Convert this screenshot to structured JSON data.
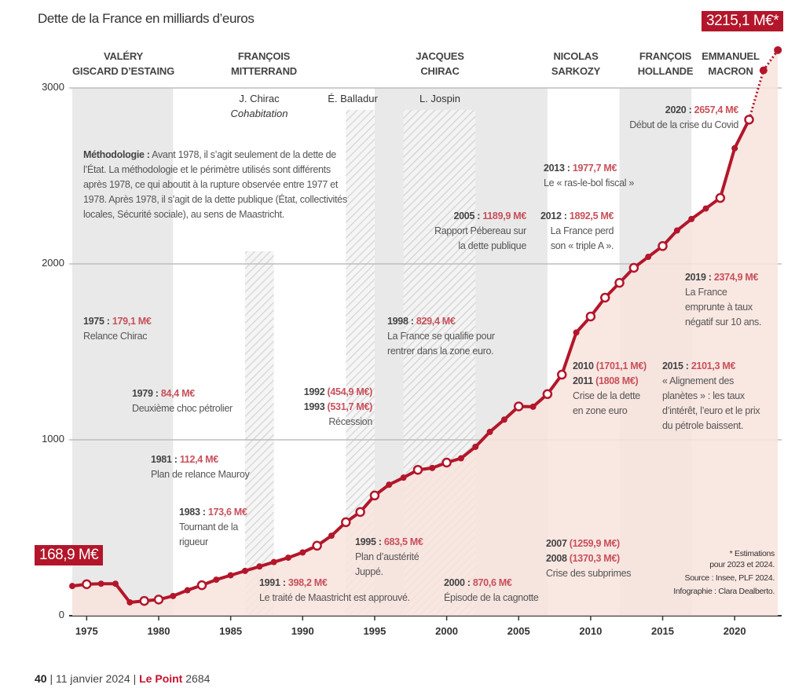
{
  "title": "Dette de la France en milliards d’euros",
  "colors": {
    "line": "#b3162a",
    "area": "#f8e3dd",
    "band_gray": "#e9e9e9",
    "hatch": "#cfcfcf",
    "value_text": "#c8505a"
  },
  "presidents": [
    {
      "name": "VALÉRY GISCARD D’ESTAING",
      "line1": "VALÉRY",
      "line2": "GISCARD D’ESTAING",
      "from": 1974,
      "to": 1981,
      "shade": "gray"
    },
    {
      "name": "FRANÇOIS MITTERRAND",
      "line1": "FRANÇOIS",
      "line2": "MITTERRAND",
      "from": 1981,
      "to": 1995,
      "shade": "white"
    },
    {
      "name": "JACQUES CHIRAC",
      "line1": "JACQUES",
      "line2": "CHIRAC",
      "from": 1995,
      "to": 2007,
      "shade": "gray"
    },
    {
      "name": "NICOLAS SARKOZY",
      "line1": "NICOLAS",
      "line2": "SARKOZY",
      "from": 2007,
      "to": 2012,
      "shade": "white"
    },
    {
      "name": "FRANÇOIS HOLLANDE",
      "line1": "FRANÇOIS",
      "line2": "HOLLANDE",
      "from": 2012,
      "to": 2017,
      "shade": "gray"
    },
    {
      "name": "EMMANUEL MACRON",
      "line1": "EMMANUEL",
      "line2": "MACRON",
      "from": 2017,
      "to": 2023.5,
      "shade": "white"
    }
  ],
  "cohabitations": [
    {
      "pm": "J. Chirac",
      "label": "Cohabitation",
      "from": 1986,
      "to": 1988
    },
    {
      "pm": "É. Balladur",
      "from": 1993,
      "to": 1995
    },
    {
      "pm": "L. Jospin",
      "from": 1997,
      "to": 2002
    }
  ],
  "methodology": {
    "label": "Méthodologie :",
    "text": "Avant 1978, il s’agit seulement de la dette de l’État. La méthodologie et le périmètre utilisés sont différents après 1978, ce qui aboutit à la rupture observée entre 1977 et 1978. Après 1978, il s’agit de la dette publique (État, collectivités locales, Sécurité sociale), au sens de Maastricht."
  },
  "badges": {
    "start": "168,9 M€",
    "end": "3215,1 M€*"
  },
  "annotations": [
    {
      "year": "1975",
      "sep": " : ",
      "value": "179,1 M€",
      "text": [
        "Relance Chirac"
      ]
    },
    {
      "year": "1979",
      "sep": " : ",
      "value": "84,4 M€",
      "text": [
        "Deuxième choc pétrolier"
      ]
    },
    {
      "year": "1981",
      "sep": " : ",
      "value": "112,4 M€",
      "text": [
        "Plan de relance Mauroy"
      ]
    },
    {
      "year": "1983",
      "sep": " : ",
      "value": "173,6 M€",
      "text": [
        "Tournant de la",
        "rigueur"
      ]
    },
    {
      "year": "1991",
      "sep": " : ",
      "value": "398,2 M€",
      "text": [
        "Le traité de Maastricht est approuvé."
      ]
    },
    {
      "year": "1992",
      "value": "(454,9 M€)",
      "year2": "1993",
      "value2": "(531,7 M€)",
      "text": [
        "Récession"
      ]
    },
    {
      "year": "1995",
      "sep": " : ",
      "value": "683,5 M€",
      "text": [
        "Plan d’austérité",
        "Juppé."
      ]
    },
    {
      "year": "1998",
      "sep": " : ",
      "value": "829,4 M€",
      "text": [
        "La France se qualifie pour",
        "rentrer dans la zone euro."
      ]
    },
    {
      "year": "2000",
      "sep": " : ",
      "value": "870,6 M€",
      "text": [
        "Épisode de la cagnotte"
      ]
    },
    {
      "year": "2005",
      "sep": " : ",
      "value": "1189,9 M€",
      "text": [
        "Rapport Pébereau sur",
        "la dette publique"
      ]
    },
    {
      "year": "2007",
      "value": "(1259,9 M€)",
      "year2": "2008",
      "value2": "(1370,3 M€)",
      "text": [
        "Crise des subprimes"
      ]
    },
    {
      "year": "2010",
      "value": "(1701,1 M€)",
      "year2": "2011",
      "value2": "(1808 M€)",
      "text": [
        "Crise de la dette",
        "en zone euro"
      ]
    },
    {
      "year": "2012",
      "sep": " : ",
      "value": "1892,5 M€",
      "text": [
        "La France perd",
        "son « triple A »."
      ]
    },
    {
      "year": "2013",
      "sep": " : ",
      "value": "1977,7 M€",
      "text": [
        "Le « ras-le-bol fiscal »"
      ]
    },
    {
      "year": "2015",
      "sep": " : ",
      "value": "2101,3 M€",
      "text": [
        "« Alignement des",
        "planètes » : les taux",
        "d’intérêt, l’euro et le prix",
        "du pétrole baissent."
      ]
    },
    {
      "year": "2019",
      "sep": " : ",
      "value": "2374,9 M€",
      "text": [
        "La France",
        "emprunte à taux",
        "négatif sur 10 ans."
      ]
    },
    {
      "year": "2020",
      "sep": " : ",
      "value": "2657,4 M€",
      "text": [
        "Début de la crise du Covid"
      ]
    }
  ],
  "notes": [
    "* Estimations",
    "pour 2023 et 2024.",
    "Source : Insee, PLF 2024.",
    "Infographie : Clara Dealberto."
  ],
  "footer": {
    "page": "40",
    "date": "11 janvier 2024",
    "brand": "Le Point",
    "issue": "2684",
    "sep": "|"
  },
  "chart_data": {
    "type": "line",
    "title": "Dette de la France en milliards d’euros",
    "xlabel": "",
    "ylabel": "",
    "xlim": [
      1974,
      2024
    ],
    "ylim": [
      0,
      3250
    ],
    "x_ticks": [
      "1975",
      "1980",
      "1985",
      "1990",
      "1995",
      "2000",
      "2005",
      "2010",
      "2015",
      "2020"
    ],
    "y_ticks": [
      "0",
      "1000",
      "2000",
      "3000"
    ],
    "grid": "horizontal",
    "series": [
      {
        "x": [
          1974,
          1975,
          1976,
          1977,
          1978,
          1979,
          1980,
          1981,
          1982,
          1983,
          1984,
          1985,
          1986,
          1987,
          1988,
          1989,
          1990,
          1991,
          1992,
          1993,
          1994,
          1995,
          1996,
          1997,
          1998,
          1999,
          2000,
          2001,
          2002,
          2003,
          2004,
          2005,
          2006,
          2007,
          2008,
          2009,
          2010,
          2011,
          2012,
          2013,
          2014,
          2015,
          2016,
          2017,
          2018,
          2019,
          2020,
          2021,
          2022,
          2023
        ],
        "y": [
          168.9,
          179.1,
          182,
          182,
          76,
          84.4,
          92,
          112.4,
          145,
          173.6,
          205,
          230,
          255,
          280,
          305,
          330,
          360,
          398.2,
          454.9,
          531.7,
          590,
          683.5,
          745,
          785,
          829.4,
          840,
          870.6,
          895,
          960,
          1045,
          1115,
          1189.9,
          1188,
          1259.9,
          1370.3,
          1610,
          1701.1,
          1808,
          1892.5,
          1977.7,
          2040,
          2101.3,
          2190,
          2255,
          2315,
          2374.9,
          2657.4,
          2820,
          3100,
          3215.1
        ],
        "estimated_from": 2022,
        "highlighted": [
          1975,
          1979,
          1980,
          1983,
          1991,
          1993,
          1994,
          1995,
          1998,
          2000,
          2005,
          2007,
          2008,
          2010,
          2011,
          2012,
          2013,
          2015,
          2019,
          2021
        ]
      }
    ]
  }
}
